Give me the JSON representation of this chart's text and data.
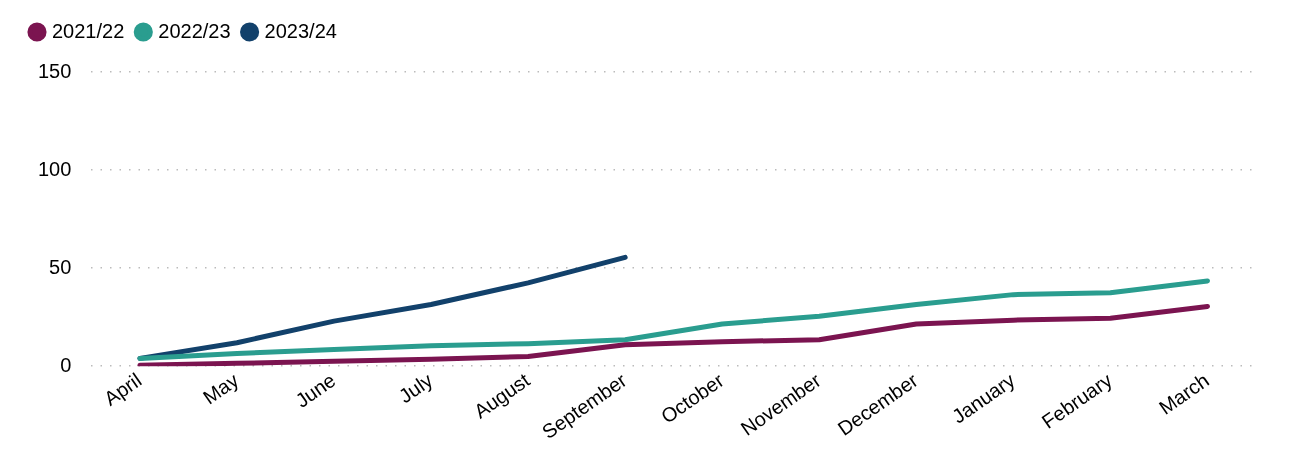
{
  "chart_data": {
    "type": "line",
    "categories": [
      "April",
      "May",
      "June",
      "July",
      "August",
      "September",
      "October",
      "November",
      "December",
      "January",
      "February",
      "March"
    ],
    "series": [
      {
        "name": "2021/22",
        "color": "#7b1450",
        "values": [
          0.5,
          1.5,
          2.5,
          3.5,
          5,
          11,
          12.5,
          13.5,
          21.5,
          23.5,
          24.5,
          30.5
        ]
      },
      {
        "name": "2022/23",
        "color": "#2a9d8f",
        "values": [
          4,
          6.5,
          8.5,
          10.5,
          11.5,
          13.5,
          21.5,
          25.5,
          31.5,
          36.5,
          37.5,
          43.5
        ]
      },
      {
        "name": "2023/24",
        "color": "#12416b",
        "values": [
          4,
          12,
          23,
          31.5,
          42.5,
          55.5,
          null,
          null,
          null,
          null,
          null,
          null
        ]
      }
    ],
    "ylim": [
      0,
      150
    ],
    "yticks": [
      0,
      50,
      100,
      150
    ],
    "grid": "y",
    "legend": "top left",
    "marker": "none",
    "line_style": "solid"
  }
}
